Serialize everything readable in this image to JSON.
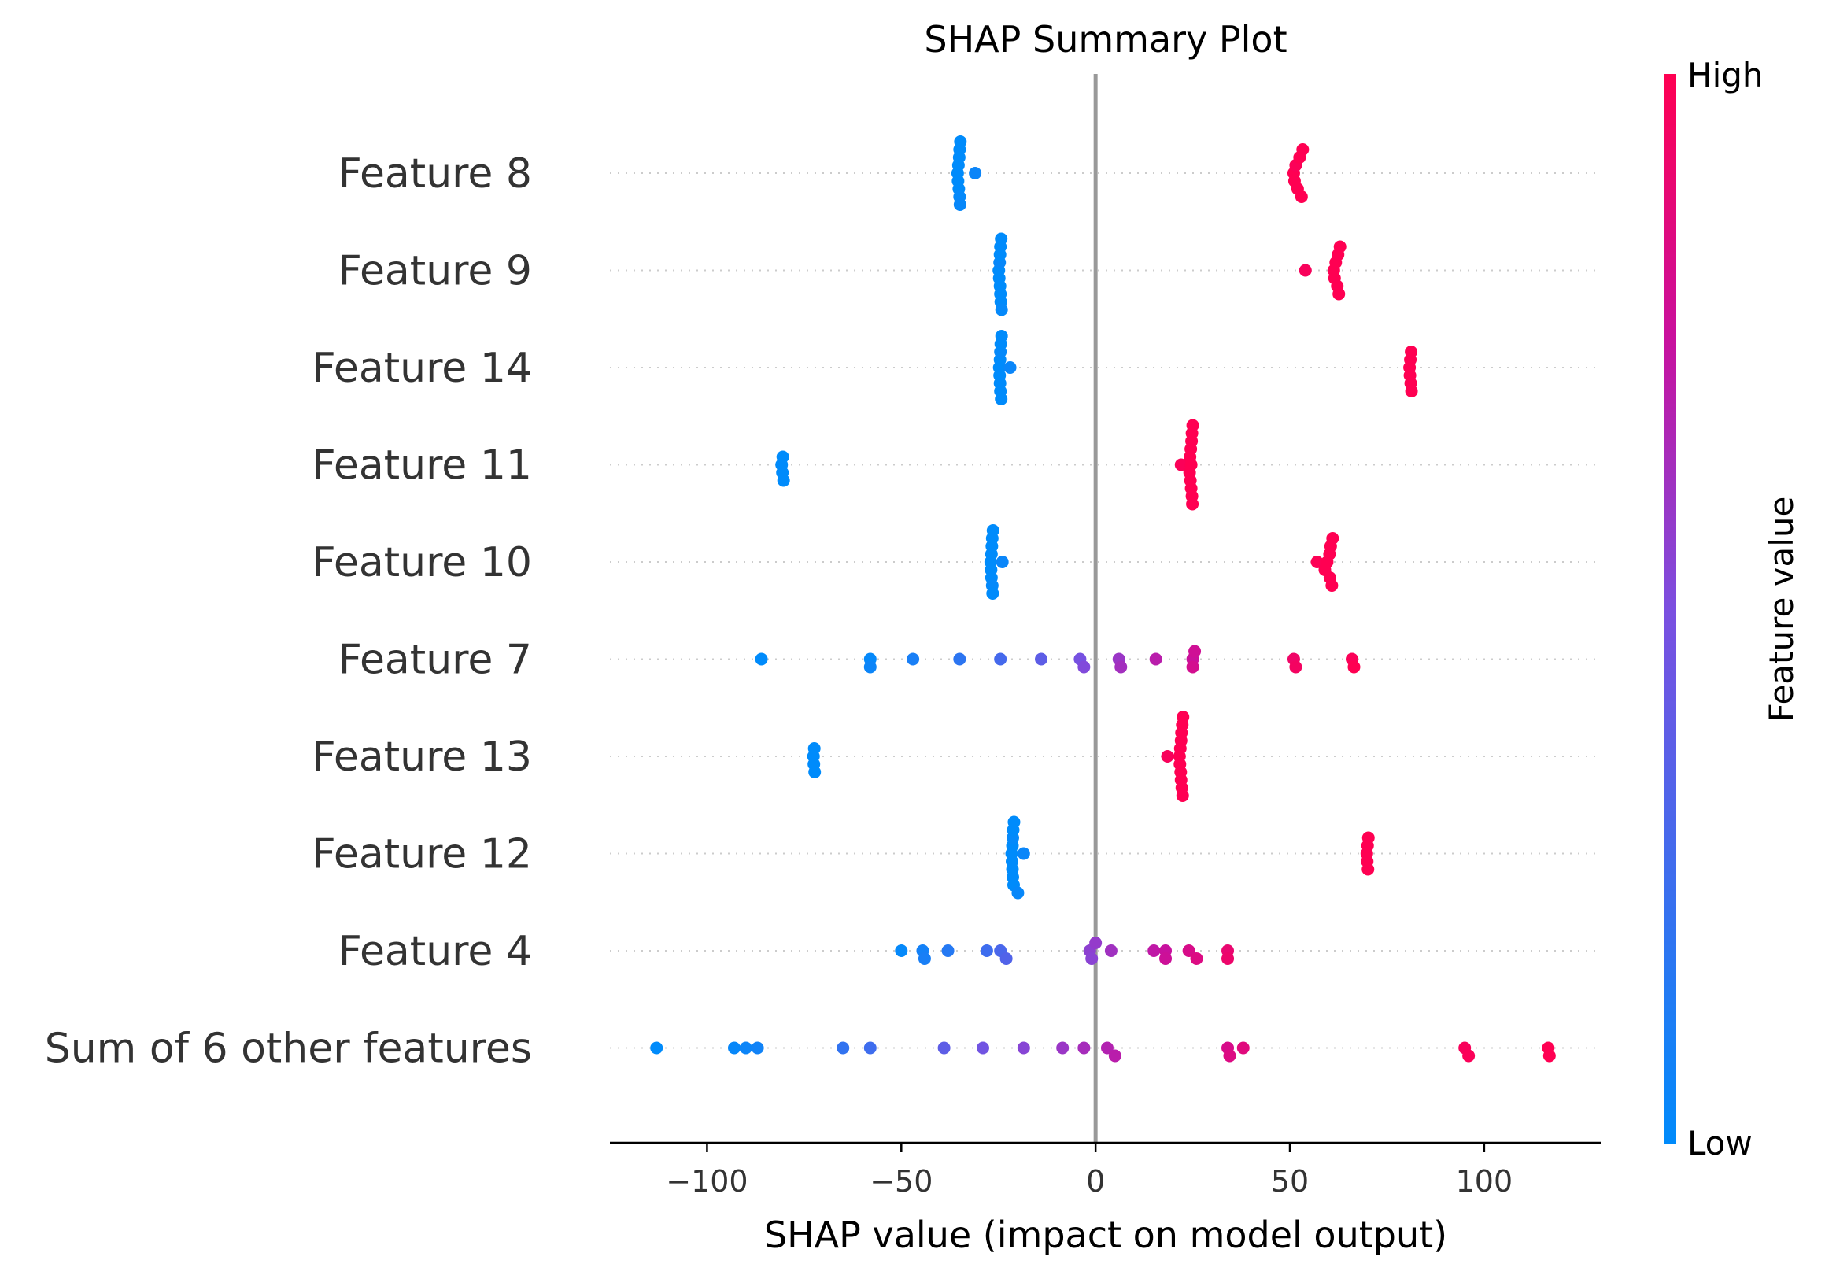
{
  "chart_data": {
    "type": "scatter",
    "title": "SHAP Summary Plot",
    "xlabel": "SHAP value (impact on model output)",
    "xlim": [
      -125,
      130
    ],
    "xticks": [
      -100,
      -50,
      0,
      50,
      100
    ],
    "xtick_labels": [
      "−100",
      "−50",
      "0",
      "50",
      "100"
    ],
    "grid": "dotted horizontal row lines",
    "zero_line": 0,
    "colorbar": {
      "title": "Feature value",
      "high_label": "High",
      "low_label": "Low",
      "low_color": "#008bfb",
      "high_color": "#ff0052"
    },
    "features": [
      {
        "name": "Feature 8",
        "points": [
          {
            "x": -35.5,
            "v": 0.0
          },
          {
            "x": -35.2,
            "v": 0.0
          },
          {
            "x": -35.0,
            "v": 0.02
          },
          {
            "x": -34.8,
            "v": 0.0
          },
          {
            "x": -35.3,
            "v": 0.0
          },
          {
            "x": -34.9,
            "v": 0.03
          },
          {
            "x": -35.1,
            "v": 0.0
          },
          {
            "x": -31.0,
            "v": 0.05
          },
          {
            "x": -35.4,
            "v": 0.0
          },
          {
            "x": -35.0,
            "v": 0.0
          },
          {
            "x": 51.0,
            "v": 1.0
          },
          {
            "x": 52.0,
            "v": 1.0
          },
          {
            "x": 53.0,
            "v": 1.0
          },
          {
            "x": 51.5,
            "v": 0.98
          },
          {
            "x": 52.5,
            "v": 1.0
          },
          {
            "x": 53.3,
            "v": 1.0
          },
          {
            "x": 51.2,
            "v": 1.0
          }
        ]
      },
      {
        "name": "Feature 9",
        "points": [
          {
            "x": -24.8,
            "v": 0.0
          },
          {
            "x": -24.5,
            "v": 0.0
          },
          {
            "x": -24.2,
            "v": 0.02
          },
          {
            "x": -24.6,
            "v": 0.0
          },
          {
            "x": -24.4,
            "v": 0.0
          },
          {
            "x": -24.9,
            "v": 0.0
          },
          {
            "x": -24.3,
            "v": 0.0
          },
          {
            "x": -24.7,
            "v": 0.03
          },
          {
            "x": -24.5,
            "v": 0.0
          },
          {
            "x": -24.6,
            "v": 0.0
          },
          {
            "x": 54.0,
            "v": 0.97
          },
          {
            "x": 61.5,
            "v": 1.0
          },
          {
            "x": 62.2,
            "v": 1.0
          },
          {
            "x": 62.6,
            "v": 1.0
          },
          {
            "x": 61.8,
            "v": 1.0
          },
          {
            "x": 62.9,
            "v": 1.0
          },
          {
            "x": 61.3,
            "v": 1.0
          },
          {
            "x": 62.4,
            "v": 1.0
          }
        ]
      },
      {
        "name": "Feature 14",
        "points": [
          {
            "x": -24.6,
            "v": 0.0
          },
          {
            "x": -24.3,
            "v": 0.0
          },
          {
            "x": -24.8,
            "v": 0.0
          },
          {
            "x": -24.5,
            "v": 0.02
          },
          {
            "x": -24.2,
            "v": 0.0
          },
          {
            "x": -24.7,
            "v": 0.0
          },
          {
            "x": -22.0,
            "v": 0.04
          },
          {
            "x": -24.4,
            "v": 0.0
          },
          {
            "x": -24.6,
            "v": 0.0
          },
          {
            "x": -24.5,
            "v": 0.0
          },
          {
            "x": 80.8,
            "v": 1.0
          },
          {
            "x": 81.2,
            "v": 1.0
          },
          {
            "x": 81.0,
            "v": 1.0
          },
          {
            "x": 80.9,
            "v": 1.0
          },
          {
            "x": 81.3,
            "v": 1.0
          },
          {
            "x": 81.1,
            "v": 1.0
          }
        ]
      },
      {
        "name": "Feature 11",
        "points": [
          {
            "x": -80.6,
            "v": 0.0
          },
          {
            "x": -80.3,
            "v": 0.0
          },
          {
            "x": -80.8,
            "v": 0.0
          },
          {
            "x": -80.5,
            "v": 0.0
          },
          {
            "x": 22.0,
            "v": 0.98
          },
          {
            "x": 24.4,
            "v": 1.0
          },
          {
            "x": 24.8,
            "v": 1.0
          },
          {
            "x": 25.0,
            "v": 1.0
          },
          {
            "x": 24.6,
            "v": 1.0
          },
          {
            "x": 24.2,
            "v": 1.0
          },
          {
            "x": 24.9,
            "v": 1.0
          },
          {
            "x": 24.5,
            "v": 1.0
          },
          {
            "x": 24.7,
            "v": 1.0
          },
          {
            "x": 24.3,
            "v": 1.0
          },
          {
            "x": 24.6,
            "v": 1.0
          },
          {
            "x": 24.8,
            "v": 1.0
          }
        ]
      },
      {
        "name": "Feature 10",
        "points": [
          {
            "x": -26.8,
            "v": 0.0
          },
          {
            "x": -26.5,
            "v": 0.0
          },
          {
            "x": -27.0,
            "v": 0.0
          },
          {
            "x": -26.6,
            "v": 0.02
          },
          {
            "x": -26.9,
            "v": 0.0
          },
          {
            "x": -26.7,
            "v": 0.0
          },
          {
            "x": -24.0,
            "v": 0.04
          },
          {
            "x": -26.4,
            "v": 0.0
          },
          {
            "x": -26.8,
            "v": 0.0
          },
          {
            "x": -26.6,
            "v": 0.0
          },
          {
            "x": 57.0,
            "v": 0.99
          },
          {
            "x": 59.0,
            "v": 1.0
          },
          {
            "x": 60.3,
            "v": 1.0
          },
          {
            "x": 60.8,
            "v": 1.0
          },
          {
            "x": 60.5,
            "v": 1.0
          },
          {
            "x": 61.0,
            "v": 1.0
          },
          {
            "x": 60.2,
            "v": 1.0
          },
          {
            "x": 59.6,
            "v": 1.0
          }
        ]
      },
      {
        "name": "Feature 7",
        "points": [
          {
            "x": -86.0,
            "v": 0.0
          },
          {
            "x": -58.0,
            "v": 0.02
          },
          {
            "x": -58.0,
            "v": 0.05
          },
          {
            "x": -47.0,
            "v": 0.1
          },
          {
            "x": -35.0,
            "v": 0.18
          },
          {
            "x": -24.5,
            "v": 0.28
          },
          {
            "x": -14.0,
            "v": 0.38
          },
          {
            "x": -4.0,
            "v": 0.48
          },
          {
            "x": -3.0,
            "v": 0.52
          },
          {
            "x": 6.0,
            "v": 0.6
          },
          {
            "x": 6.5,
            "v": 0.63
          },
          {
            "x": 15.5,
            "v": 0.7
          },
          {
            "x": 25.0,
            "v": 0.76
          },
          {
            "x": 25.5,
            "v": 0.78
          },
          {
            "x": 25.0,
            "v": 0.8
          },
          {
            "x": 51.0,
            "v": 0.93
          },
          {
            "x": 51.5,
            "v": 0.95
          },
          {
            "x": 66.0,
            "v": 0.98
          },
          {
            "x": 66.5,
            "v": 1.0
          }
        ]
      },
      {
        "name": "Feature 13",
        "points": [
          {
            "x": -72.6,
            "v": 0.0
          },
          {
            "x": -72.3,
            "v": 0.0
          },
          {
            "x": -72.5,
            "v": 0.0
          },
          {
            "x": -72.4,
            "v": 0.0
          },
          {
            "x": 18.5,
            "v": 0.97
          },
          {
            "x": 21.8,
            "v": 1.0
          },
          {
            "x": 22.2,
            "v": 1.0
          },
          {
            "x": 22.5,
            "v": 1.0
          },
          {
            "x": 22.0,
            "v": 1.0
          },
          {
            "x": 21.6,
            "v": 1.0
          },
          {
            "x": 22.4,
            "v": 1.0
          },
          {
            "x": 22.1,
            "v": 1.0
          },
          {
            "x": 21.9,
            "v": 1.0
          },
          {
            "x": 22.3,
            "v": 1.0
          },
          {
            "x": 22.0,
            "v": 1.0
          },
          {
            "x": 21.7,
            "v": 1.0
          }
        ]
      },
      {
        "name": "Feature 12",
        "points": [
          {
            "x": -21.4,
            "v": 0.0
          },
          {
            "x": -21.1,
            "v": 0.0
          },
          {
            "x": -21.6,
            "v": 0.0
          },
          {
            "x": -21.3,
            "v": 0.02
          },
          {
            "x": -21.0,
            "v": 0.0
          },
          {
            "x": -21.5,
            "v": 0.0
          },
          {
            "x": -18.5,
            "v": 0.04
          },
          {
            "x": -21.2,
            "v": 0.0
          },
          {
            "x": -21.4,
            "v": 0.0
          },
          {
            "x": -21.3,
            "v": 0.0
          },
          {
            "x": -20.0,
            "v": 0.03
          },
          {
            "x": 69.8,
            "v": 1.0
          },
          {
            "x": 70.2,
            "v": 1.0
          },
          {
            "x": 70.0,
            "v": 1.0
          },
          {
            "x": 69.9,
            "v": 1.0
          },
          {
            "x": 70.1,
            "v": 1.0
          }
        ]
      },
      {
        "name": "Feature 4",
        "points": [
          {
            "x": -50.0,
            "v": 0.02
          },
          {
            "x": -44.5,
            "v": 0.08
          },
          {
            "x": -44.0,
            "v": 0.1
          },
          {
            "x": -38.0,
            "v": 0.15
          },
          {
            "x": -28.0,
            "v": 0.25
          },
          {
            "x": -24.5,
            "v": 0.3
          },
          {
            "x": -23.0,
            "v": 0.33
          },
          {
            "x": -1.0,
            "v": 0.55
          },
          {
            "x": -1.5,
            "v": 0.56
          },
          {
            "x": 0.0,
            "v": 0.58
          },
          {
            "x": 4.0,
            "v": 0.62
          },
          {
            "x": 15.0,
            "v": 0.72
          },
          {
            "x": 18.0,
            "v": 0.75
          },
          {
            "x": 18.0,
            "v": 0.77
          },
          {
            "x": 24.0,
            "v": 0.82
          },
          {
            "x": 26.0,
            "v": 0.84
          },
          {
            "x": 34.0,
            "v": 0.9
          },
          {
            "x": 34.0,
            "v": 0.92
          }
        ]
      },
      {
        "name": "Sum of 6 other features",
        "points": [
          {
            "x": -113.0,
            "v": 0.0
          },
          {
            "x": -93.0,
            "v": 0.03
          },
          {
            "x": -90.0,
            "v": 0.05
          },
          {
            "x": -87.0,
            "v": 0.07
          },
          {
            "x": -65.0,
            "v": 0.2
          },
          {
            "x": -58.0,
            "v": 0.25
          },
          {
            "x": -39.0,
            "v": 0.38
          },
          {
            "x": -29.0,
            "v": 0.46
          },
          {
            "x": -18.5,
            "v": 0.54
          },
          {
            "x": -8.5,
            "v": 0.6
          },
          {
            "x": -3.0,
            "v": 0.64
          },
          {
            "x": 3.0,
            "v": 0.68
          },
          {
            "x": 5.0,
            "v": 0.7
          },
          {
            "x": 34.0,
            "v": 0.82
          },
          {
            "x": 34.5,
            "v": 0.84
          },
          {
            "x": 38.0,
            "v": 0.86
          },
          {
            "x": 95.0,
            "v": 0.97
          },
          {
            "x": 96.0,
            "v": 0.98
          },
          {
            "x": 116.5,
            "v": 1.0
          },
          {
            "x": 116.8,
            "v": 1.0
          }
        ]
      }
    ]
  }
}
